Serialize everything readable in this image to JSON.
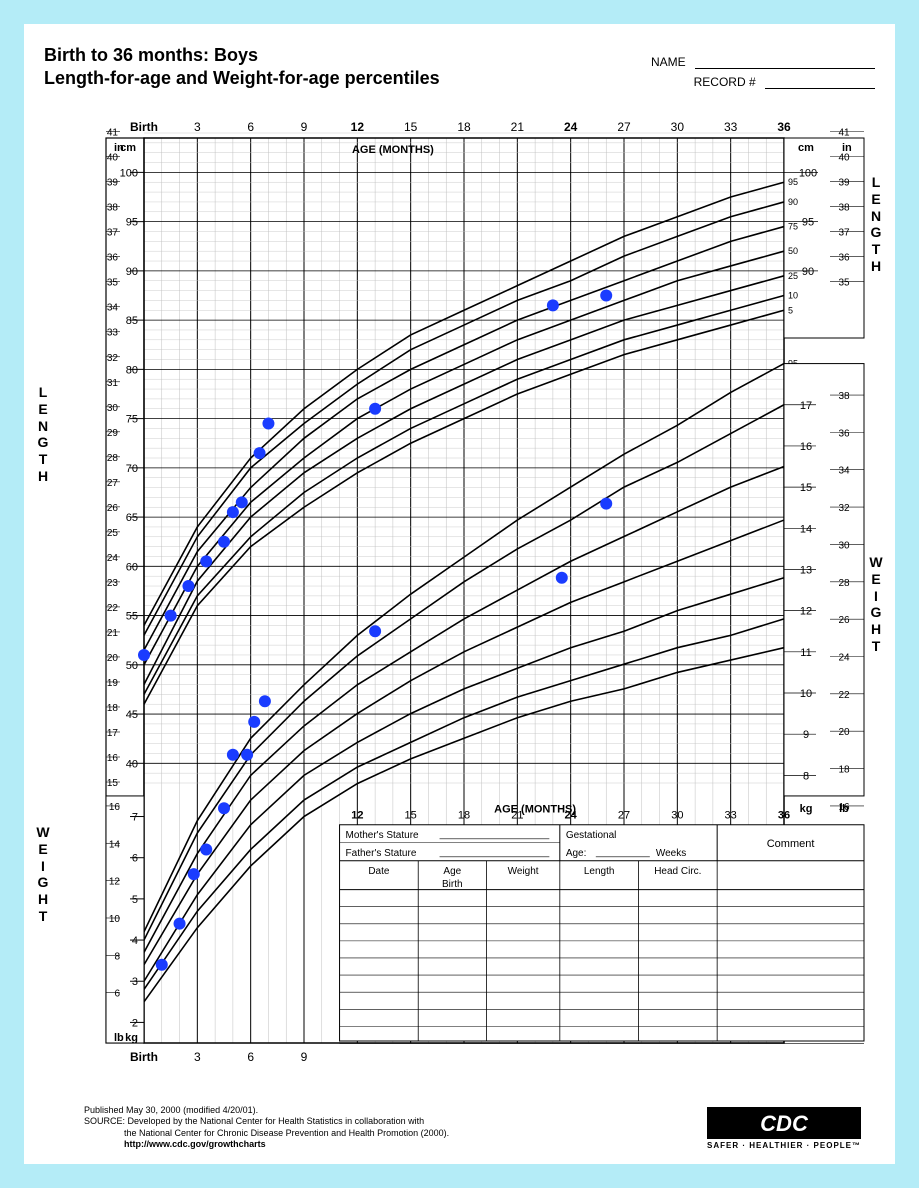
{
  "title_line1": "Birth to 36 months: Boys",
  "title_line2": "Length-for-age and Weight-for-age percentiles",
  "name_label": "NAME",
  "record_label": "RECORD #",
  "x_label": "AGE (MONTHS)",
  "x_ticks": [
    "Birth",
    "3",
    "6",
    "9",
    "12",
    "15",
    "18",
    "21",
    "24",
    "27",
    "30",
    "33",
    "36"
  ],
  "x_bold_idx": [
    0,
    4,
    8,
    12
  ],
  "length_cm_ticks": [
    40,
    45,
    50,
    55,
    60,
    65,
    70,
    75,
    80,
    85,
    90,
    95,
    100
  ],
  "length_in_ticks": [
    15,
    16,
    17,
    18,
    19,
    20,
    21,
    22,
    23,
    24,
    25,
    26,
    27,
    28,
    29,
    30,
    31,
    32,
    33,
    34,
    35,
    36,
    37,
    38,
    39,
    40,
    41
  ],
  "length_in_right_upper": [
    35,
    36,
    37,
    38,
    39,
    40,
    41
  ],
  "length_cm_right_upper": [
    90,
    95,
    100
  ],
  "percentile_labels": [
    "5",
    "10",
    "25",
    "50",
    "75",
    "90",
    "95"
  ],
  "length_curves": {
    "5": [
      46,
      56,
      62,
      66,
      69.5,
      72.5,
      75,
      77.5,
      79.5,
      81.5,
      83,
      84.5,
      86
    ],
    "10": [
      47,
      57,
      63,
      67.5,
      71,
      74,
      76.5,
      79,
      81,
      83,
      84.5,
      86,
      87.5
    ],
    "25": [
      48,
      58.5,
      65,
      69.5,
      73,
      76,
      78.5,
      81,
      83,
      85,
      86.5,
      88,
      89.5
    ],
    "50": [
      50,
      60,
      66.5,
      71,
      75,
      78,
      80.5,
      83,
      85,
      87,
      89,
      90.5,
      92
    ],
    "75": [
      51.5,
      61.5,
      68,
      73,
      77,
      80,
      82.5,
      85,
      87,
      89,
      91,
      93,
      94.5
    ],
    "90": [
      53,
      63,
      70,
      74.5,
      78.5,
      82,
      84.5,
      87,
      89,
      91.5,
      93.5,
      95.5,
      97
    ],
    "95": [
      54,
      64,
      71,
      76,
      80,
      83.5,
      86,
      88.5,
      91,
      93.5,
      95.5,
      97.5,
      99
    ]
  },
  "weight_kg_left_ticks": [
    2,
    3,
    4,
    5,
    6,
    7
  ],
  "weight_lb_left_ticks": [
    6,
    8,
    10,
    12,
    14,
    16
  ],
  "weight_kg_right_ticks": [
    8,
    9,
    10,
    11,
    12,
    13,
    14,
    15,
    16,
    17
  ],
  "weight_lb_right_ticks": [
    16,
    18,
    20,
    22,
    24,
    26,
    28,
    30,
    32,
    34,
    36,
    38
  ],
  "weight_curves": {
    "5": [
      2.5,
      4.3,
      5.8,
      7.0,
      7.8,
      8.4,
      8.9,
      9.4,
      9.8,
      10.1,
      10.5,
      10.8,
      11.1
    ],
    "10": [
      2.8,
      4.7,
      6.2,
      7.4,
      8.2,
      8.8,
      9.4,
      9.9,
      10.3,
      10.7,
      11.1,
      11.4,
      11.8
    ],
    "25": [
      3.0,
      5.1,
      6.8,
      8.0,
      8.8,
      9.5,
      10.1,
      10.6,
      11.1,
      11.5,
      12.0,
      12.4,
      12.8
    ],
    "50": [
      3.4,
      5.6,
      7.4,
      8.6,
      9.5,
      10.3,
      11.0,
      11.6,
      12.2,
      12.7,
      13.2,
      13.7,
      14.2
    ],
    "75": [
      3.7,
      6.1,
      8.0,
      9.2,
      10.2,
      11.0,
      11.8,
      12.5,
      13.2,
      13.8,
      14.4,
      15.0,
      15.5
    ],
    "90": [
      4.0,
      6.6,
      8.5,
      9.8,
      10.9,
      11.8,
      12.7,
      13.5,
      14.2,
      15.0,
      15.6,
      16.3,
      17.0
    ],
    "95": [
      4.2,
      6.9,
      8.9,
      10.2,
      11.4,
      12.4,
      13.3,
      14.2,
      15.0,
      15.8,
      16.5,
      17.3,
      18.0
    ]
  },
  "length_points": [
    {
      "x": 0,
      "cm": 51
    },
    {
      "x": 1.5,
      "cm": 55
    },
    {
      "x": 2.5,
      "cm": 58
    },
    {
      "x": 3.5,
      "cm": 60.5
    },
    {
      "x": 4.5,
      "cm": 62.5
    },
    {
      "x": 5,
      "cm": 65.5
    },
    {
      "x": 5.5,
      "cm": 66.5
    },
    {
      "x": 6.5,
      "cm": 71.5
    },
    {
      "x": 7,
      "cm": 74.5
    },
    {
      "x": 13,
      "cm": 76
    },
    {
      "x": 23,
      "cm": 86.5
    },
    {
      "x": 26,
      "cm": 87.5
    }
  ],
  "weight_points": [
    {
      "x": 1,
      "kg": 3.4
    },
    {
      "x": 2,
      "kg": 4.4
    },
    {
      "x": 2.8,
      "kg": 5.6
    },
    {
      "x": 3.5,
      "kg": 6.2
    },
    {
      "x": 4.5,
      "kg": 7.2
    },
    {
      "x": 5,
      "kg": 8.5
    },
    {
      "x": 5.8,
      "kg": 8.5
    },
    {
      "x": 6.2,
      "kg": 9.3
    },
    {
      "x": 6.8,
      "kg": 9.8
    },
    {
      "x": 13,
      "kg": 11.5
    },
    {
      "x": 23.5,
      "kg": 12.8
    },
    {
      "x": 26,
      "kg": 14.6
    }
  ],
  "point_color": "#1a3cff",
  "point_radius": 6,
  "line_color": "#000000",
  "grid_light": "#bfbfbf",
  "grid_dark": "#000000",
  "unit_in": "in",
  "unit_cm": "cm",
  "unit_kg": "kg",
  "unit_lb": "lb",
  "side_label_length": "LENGTH",
  "side_label_weight": "WEIGHT",
  "bottom_x_ticks": [
    "Birth",
    "3",
    "6",
    "9"
  ],
  "lower_x_ticks": [
    "12",
    "15",
    "18",
    "21",
    "24",
    "27",
    "30",
    "33",
    "36"
  ],
  "info_box": {
    "mother": "Mother's Stature",
    "father": "Father's Stature",
    "gest": "Gestational",
    "age": "Age:",
    "weeks": "Weeks",
    "comment": "Comment",
    "cols": [
      "Date",
      "Age",
      "Weight",
      "Length",
      "Head  Circ."
    ],
    "birth_row": "Birth"
  },
  "footer": {
    "pub": "Published May 30, 2000 (modified 4/20/01).",
    "src1": "SOURCE: Developed by the National Center for Health Statistics in collaboration with",
    "src2": "the National Center for Chronic Disease Prevention and Health Promotion (2000).",
    "url": "http://www.cdc.gov/growthcharts"
  },
  "cdc_tag": "SAFER · HEALTHIER · PEOPLE™",
  "cdc_logo": "CDC"
}
